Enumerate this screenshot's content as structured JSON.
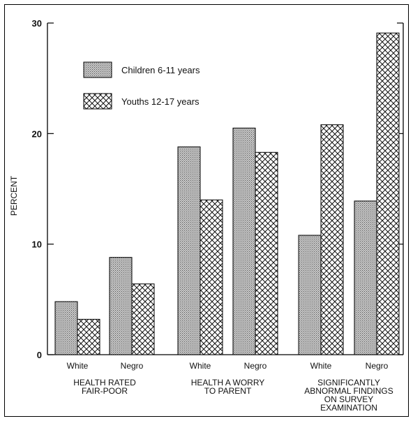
{
  "chart_data": {
    "type": "bar",
    "ylabel": "PERCENT",
    "ylim": [
      0,
      30
    ],
    "yticks": [
      "0",
      "10",
      "20",
      "30"
    ],
    "groups": [
      {
        "label_lines": [
          "HEALTH RATED",
          "FAIR-POOR"
        ],
        "categories": [
          "White",
          "Negro"
        ]
      },
      {
        "label_lines": [
          "HEALTH A WORRY",
          "TO PARENT"
        ],
        "categories": [
          "White",
          "Negro"
        ]
      },
      {
        "label_lines": [
          "SIGNIFICANTLY",
          "ABNORMAL FINDINGS",
          "ON SURVEY",
          "EXAMINATION"
        ],
        "categories": [
          "White",
          "Negro"
        ]
      }
    ],
    "series": [
      {
        "name": "Children 6-11 years",
        "pattern": "dotted",
        "values": [
          4.8,
          8.8,
          18.8,
          20.5,
          10.8,
          13.9
        ]
      },
      {
        "name": "Youths 12-17 years",
        "pattern": "crosshatch",
        "values": [
          3.2,
          6.4,
          14.0,
          18.3,
          20.8,
          29.1
        ]
      }
    ],
    "legend": "top-left",
    "grid": false
  }
}
